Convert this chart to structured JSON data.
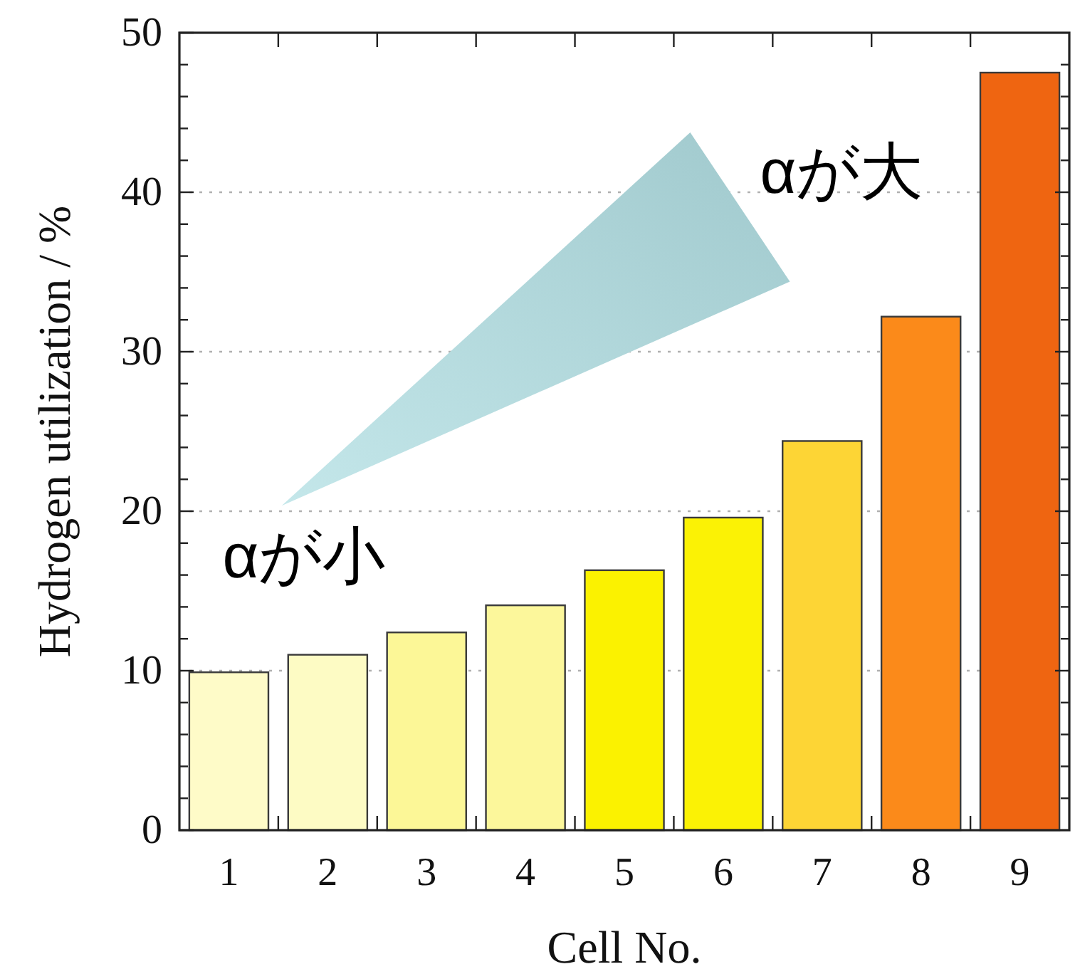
{
  "chart_data": {
    "type": "bar",
    "xlabel": "Cell No.",
    "ylabel": "Hydrogen utilization / %",
    "categories": [
      "1",
      "2",
      "3",
      "4",
      "5",
      "6",
      "7",
      "8",
      "9"
    ],
    "values": [
      9.9,
      11.0,
      12.4,
      14.1,
      16.3,
      19.6,
      24.4,
      32.2,
      47.5
    ],
    "colors": [
      "#fefbc8",
      "#fdfbc4",
      "#fcf797",
      "#fcf79b",
      "#fbf200",
      "#fbf205",
      "#fdd535",
      "#fb8a1a",
      "#ef6511"
    ],
    "ylim": [
      0,
      50
    ],
    "yticks": [
      0,
      {
        "value": 2,
        "label": null
      },
      {
        "value": 4,
        "label": null
      },
      {
        "value": 6,
        "label": null
      },
      {
        "value": 8,
        "label": null
      },
      10,
      {
        "value": 12,
        "label": null
      },
      {
        "value": 14,
        "label": null
      },
      {
        "value": 16,
        "label": null
      },
      {
        "value": 18,
        "label": null
      },
      20,
      {
        "value": 22,
        "label": null
      },
      {
        "value": 24,
        "label": null
      },
      {
        "value": 26,
        "label": null
      },
      {
        "value": 28,
        "label": null
      },
      30,
      {
        "value": 32,
        "label": null
      },
      {
        "value": 34,
        "label": null
      },
      {
        "value": 36,
        "label": null
      },
      {
        "value": 38,
        "label": null
      },
      40,
      {
        "value": 42,
        "label": null
      },
      {
        "value": 44,
        "label": null
      },
      {
        "value": 46,
        "label": null
      },
      {
        "value": 48,
        "label": null
      },
      50
    ],
    "grid": "y",
    "annotations": [
      "αが大",
      "αが小"
    ]
  }
}
